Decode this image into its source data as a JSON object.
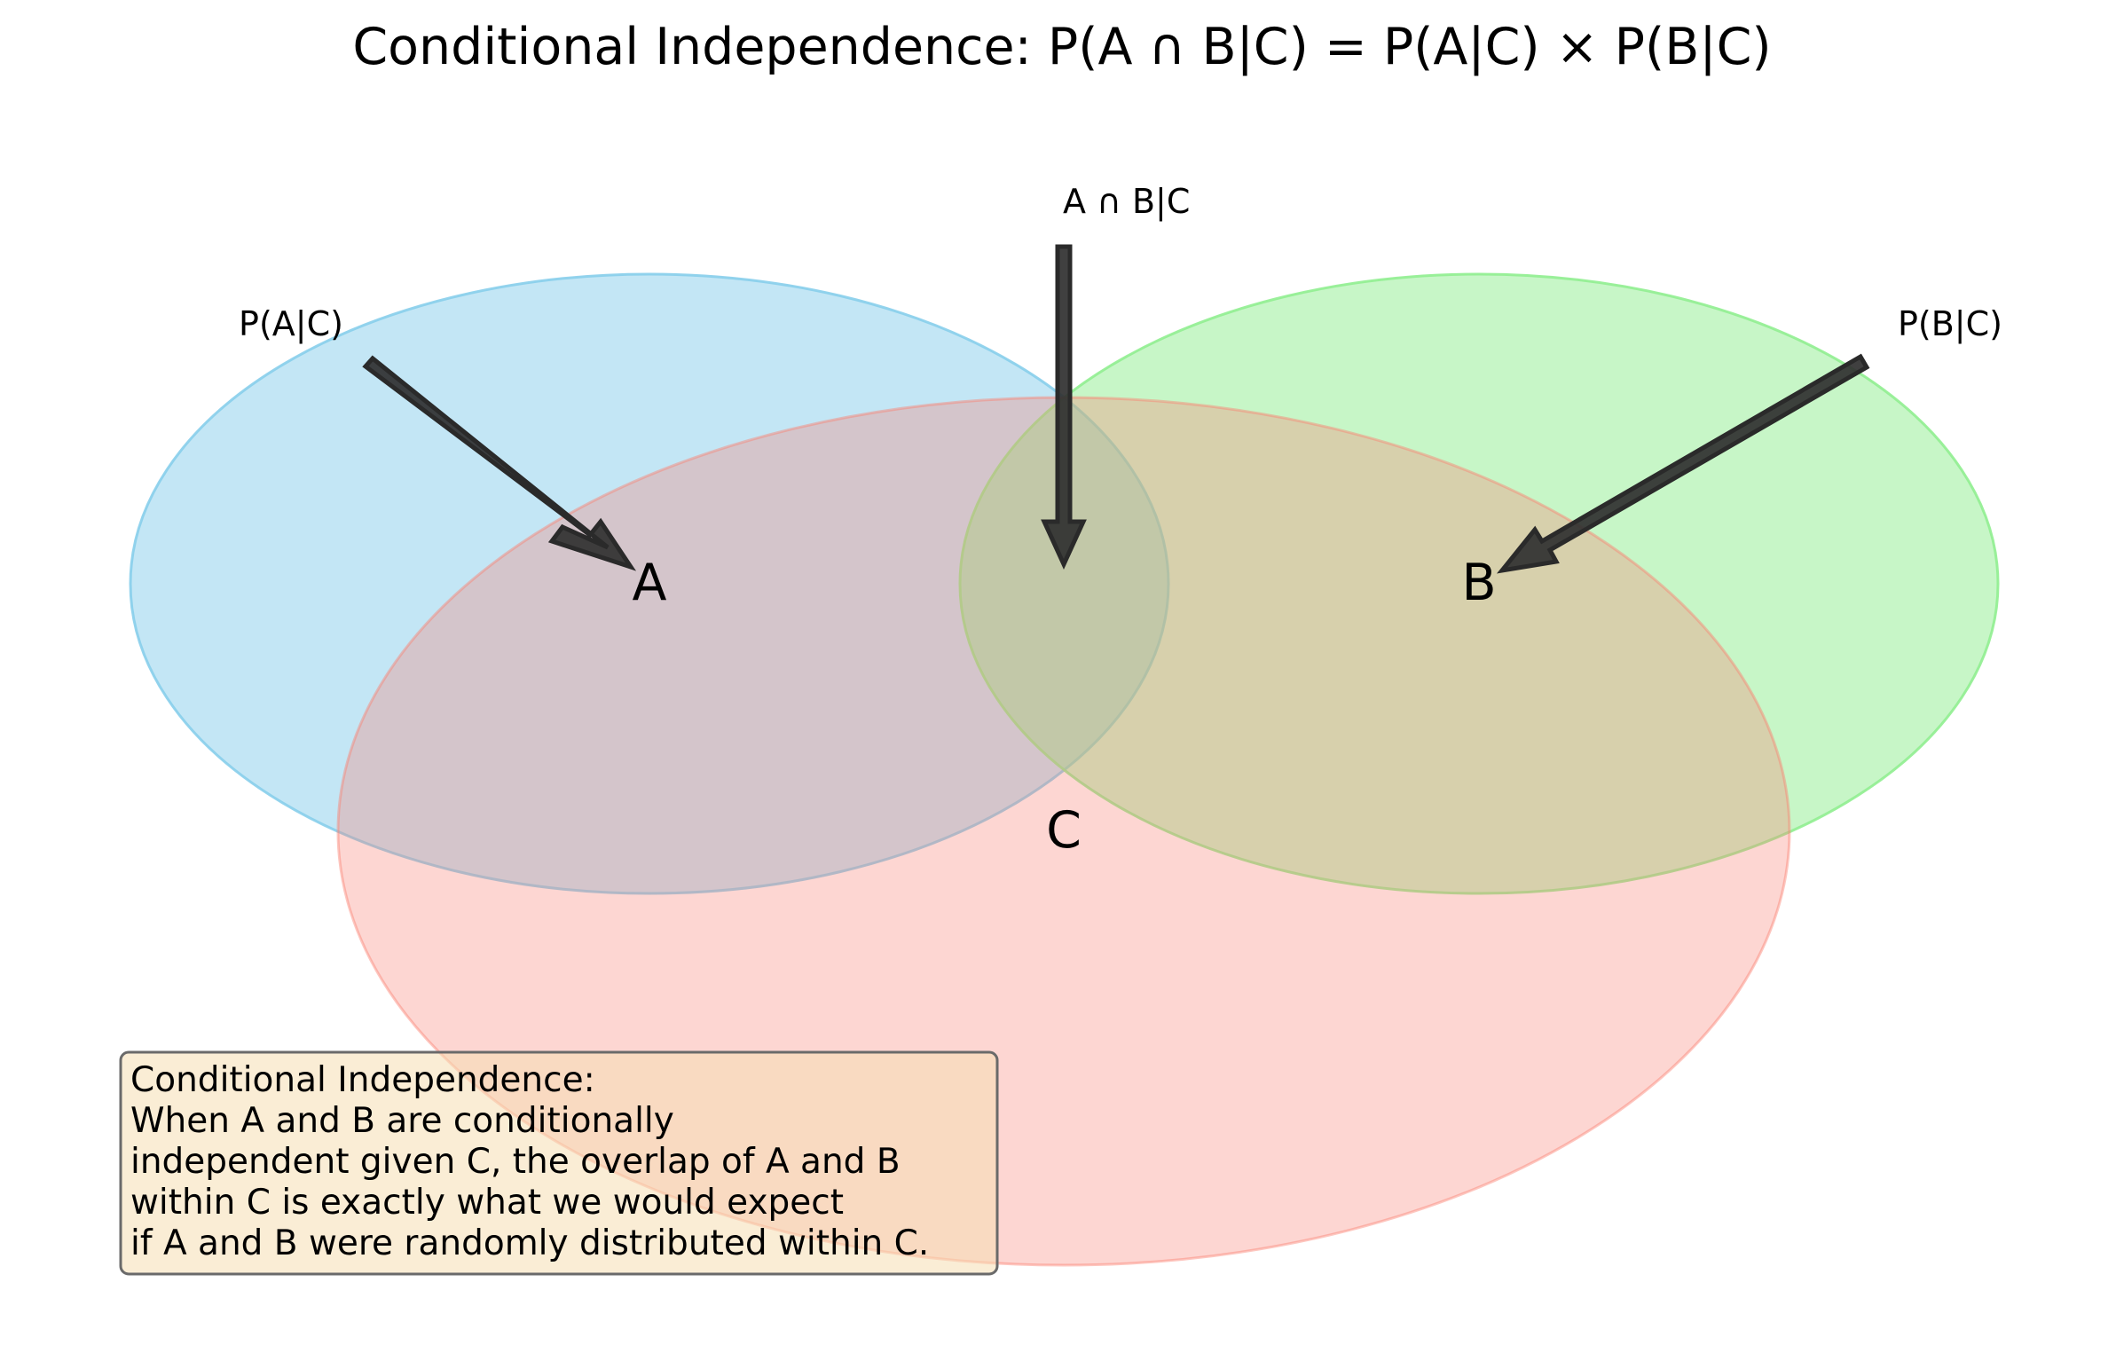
{
  "title": "Conditional Independence: P(A ∩ B|C) = P(A|C) × P(B|C)",
  "sets": [
    {
      "id": "A",
      "label": "A",
      "color": "#87ceeb"
    },
    {
      "id": "B",
      "label": "B",
      "color": "#90ee90"
    },
    {
      "id": "C",
      "label": "C",
      "color": "#ffb6b0"
    }
  ],
  "annotations": {
    "a_given_c": "P(A|C)",
    "intersection": "A ∩ B|C",
    "b_given_c": "P(B|C)"
  },
  "arrow_color": "#303030",
  "note": {
    "lines": [
      "Conditional Independence:",
      "When A and B are conditionally",
      "independent given C, the overlap of A and B",
      "within C is exactly what we would expect",
      "if A and B were randomly distributed within C."
    ],
    "background": "#f5deb3"
  }
}
